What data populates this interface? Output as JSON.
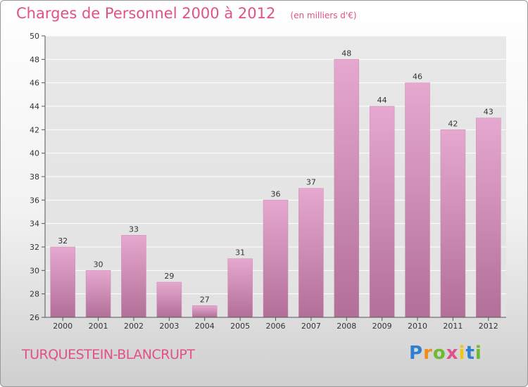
{
  "header": {
    "title": "Charges de Personnel 2000 à 2012",
    "subtitle": "(en milliers d'€)"
  },
  "footer": {
    "commune": "TURQUESTEIN-BLANCRUPT",
    "logo_letters": [
      "P",
      "r",
      "o",
      "x",
      "i",
      "t",
      "i"
    ]
  },
  "colors": {
    "bar_top": "#e6a8cf",
    "bar_bottom": "#b26f98",
    "title": "#e0508a"
  },
  "chart_data": {
    "type": "bar",
    "title": "Charges de Personnel 2000 à 2012",
    "subtitle": "(en milliers d'€)",
    "categories": [
      "2000",
      "2001",
      "2002",
      "2003",
      "2004",
      "2005",
      "2006",
      "2007",
      "2008",
      "2009",
      "2010",
      "2011",
      "2012"
    ],
    "values": [
      32,
      30,
      33,
      29,
      27,
      31,
      36,
      37,
      48,
      44,
      46,
      42,
      43
    ],
    "ylim": [
      26,
      50
    ],
    "yticks": [
      26,
      28,
      30,
      32,
      34,
      36,
      38,
      40,
      42,
      44,
      46,
      48,
      50
    ],
    "grid": true
  }
}
